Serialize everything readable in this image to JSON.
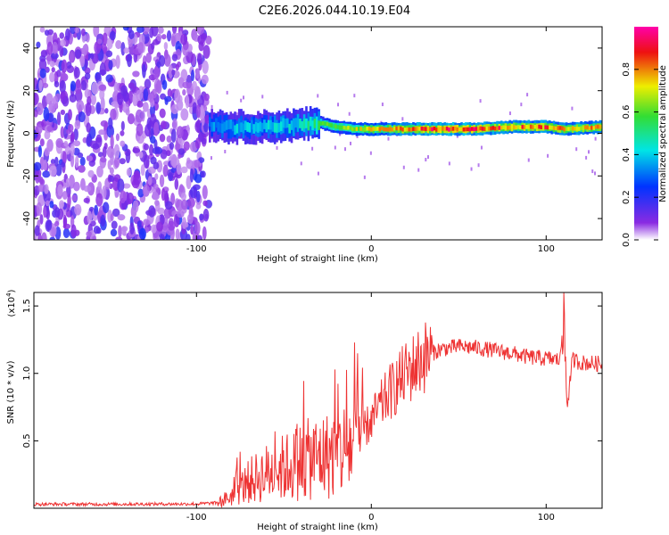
{
  "figure_title": "C2E6.2026.044.10.19.E04",
  "colors": {
    "line": "#ee3333",
    "axis": "#000000",
    "cmap_low": "#ffffff",
    "cmap_purple": "#8a2be2",
    "cmap_blue": "#0033ff",
    "cmap_cyan": "#00e5e5",
    "cmap_green": "#33dd33",
    "cmap_yellow": "#eeee00",
    "cmap_red": "#ee1111",
    "cmap_high": "#ff00aa"
  },
  "chart_data": [
    {
      "type": "heatmap",
      "title": "",
      "xlabel": "Height of straight line (km)",
      "ylabel": "Frequency (Hz)",
      "xlim": [
        -193,
        132
      ],
      "ylim": [
        -50,
        50
      ],
      "xticks": [
        -100,
        0,
        100
      ],
      "xtick_labels": [
        "-100",
        "0",
        "100"
      ],
      "yticks": [
        -40,
        -20,
        0,
        20,
        40
      ],
      "ytick_labels": [
        "-40",
        "-20",
        "0",
        "20",
        "40"
      ],
      "colorbar": {
        "label": "Normalized spectral amplitude",
        "range": [
          0,
          1
        ],
        "ticks": [
          0,
          0.2,
          0.4,
          0.6,
          0.8
        ],
        "tick_labels": [
          "0.0",
          "0.2",
          "0.4",
          "0.6",
          "0.8"
        ]
      },
      "regions": [
        {
          "x_range": [
            -193,
            -93
          ],
          "y_range": [
            -50,
            50
          ],
          "description": "noise",
          "amplitude": 0.15
        },
        {
          "x_range": [
            -93,
            -30
          ],
          "center_freq": 4,
          "spread": 6,
          "amplitude": 0.4
        },
        {
          "x_range": [
            -30,
            132
          ],
          "center_freq": 2,
          "spread": 2,
          "amplitude": 0.85
        }
      ],
      "ridge": {
        "x": [
          -93,
          -80,
          -60,
          -40,
          -30,
          -20,
          -10,
          0,
          20,
          40,
          60,
          80,
          100,
          110,
          132
        ],
        "freq": [
          4,
          3,
          3,
          4,
          5,
          3,
          2,
          2,
          2,
          2,
          2,
          3,
          3,
          2,
          3
        ],
        "amplitude": [
          0.35,
          0.4,
          0.4,
          0.45,
          0.55,
          0.6,
          0.7,
          0.75,
          0.85,
          0.9,
          0.9,
          0.85,
          0.85,
          0.8,
          0.8
        ]
      }
    },
    {
      "type": "line",
      "title": "",
      "xlabel": "Height of straight line (km)",
      "ylabel": "SNR (10 * v/v)",
      "y_scale_label": "(x10",
      "y_scale_exponent": "4",
      "y_scale_close": ")",
      "xlim": [
        -193,
        132
      ],
      "ylim": [
        0,
        16000
      ],
      "xticks": [
        -100,
        0,
        100
      ],
      "xtick_labels": [
        "-100",
        "0",
        "100"
      ],
      "yticks": [
        5000,
        10000,
        15000
      ],
      "ytick_labels": [
        "0.5",
        "1.0",
        "1.5"
      ],
      "series": [
        {
          "name": "SNR",
          "x": [
            -193,
            -150,
            -100,
            -88,
            -80,
            -70,
            -60,
            -50,
            -40,
            -30,
            -20,
            -10,
            0,
            10,
            20,
            30,
            40,
            50,
            60,
            70,
            80,
            90,
            100,
            108,
            110,
            112,
            115,
            120,
            132
          ],
          "values": [
            300,
            300,
            320,
            400,
            900,
            2000,
            2600,
            3000,
            3500,
            3800,
            4000,
            4800,
            6500,
            8500,
            10000,
            11200,
            11800,
            12000,
            11900,
            11700,
            11500,
            11200,
            11100,
            11000,
            14500,
            7500,
            11000,
            10800,
            10700
          ]
        }
      ]
    }
  ]
}
